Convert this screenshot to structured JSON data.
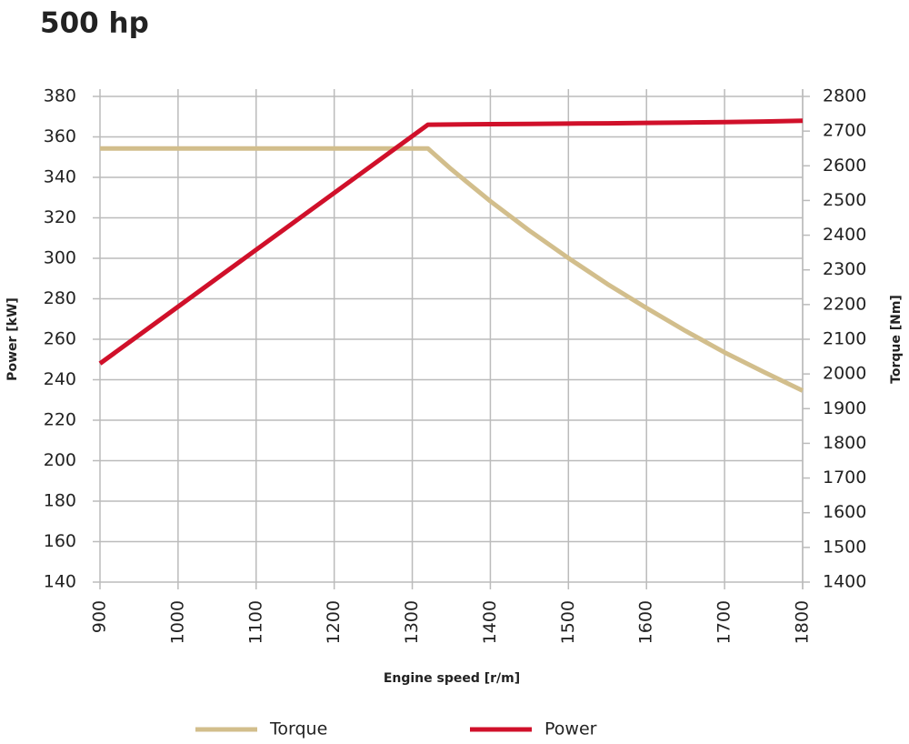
{
  "chart_data": {
    "type": "line",
    "title": "500 hp",
    "x_label": "Engine speed [r/m]",
    "y_label": "Power [kW]",
    "y2_label": "Torque [Nm]",
    "x": [
      900,
      1000,
      1100,
      1200,
      1300,
      1320,
      1350,
      1400,
      1450,
      1500,
      1550,
      1600,
      1650,
      1700,
      1750,
      1800
    ],
    "series": [
      {
        "name": "Torque",
        "color": "#d2be8c",
        "axis": "y2",
        "values": [
          2650,
          2650,
          2650,
          2650,
          2650,
          2650,
          2590,
          2498,
          2413,
          2334,
          2259,
          2190,
          2124,
          2062,
          2006,
          1952
        ]
      },
      {
        "name": "Power",
        "color": "#d0102a",
        "values": [
          248,
          276.1,
          304.2,
          332.3,
          360.4,
          366,
          366.1,
          366.3,
          366.4,
          366.6,
          366.7,
          366.9,
          367.1,
          367.3,
          367.6,
          368
        ]
      }
    ],
    "xlim": [
      900,
      1800
    ],
    "xticks": [
      900,
      1000,
      1100,
      1200,
      1300,
      1400,
      1500,
      1600,
      1700,
      1800
    ],
    "ylim": [
      140,
      380
    ],
    "yticks": [
      140,
      160,
      180,
      200,
      220,
      240,
      260,
      280,
      300,
      320,
      340,
      360,
      380
    ],
    "y2lim": [
      1400,
      2800
    ],
    "y2ticks": [
      1400,
      1500,
      1600,
      1700,
      1800,
      1900,
      2000,
      2100,
      2200,
      2300,
      2400,
      2500,
      2600,
      2700,
      2800
    ],
    "grid": true
  }
}
